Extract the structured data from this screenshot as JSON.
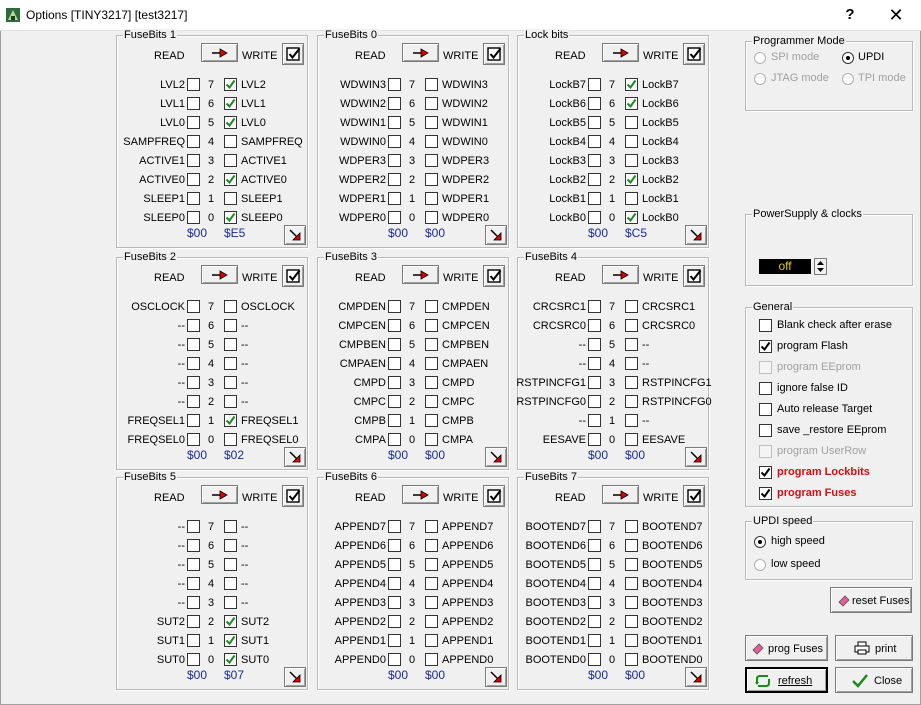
{
  "window": {
    "title": "Options [TINY3217] [test3217]",
    "help_label": "?",
    "close_label": "✕"
  },
  "labels": {
    "read": "READ",
    "write": "WRITE"
  },
  "fuse_groups": [
    {
      "title": "FuseBits 1",
      "hex_left": "$00",
      "hex_right": "$E5",
      "bits": [
        {
          "index": "7",
          "left": "LVL2",
          "right": "LVL2",
          "checked": true
        },
        {
          "index": "6",
          "left": "LVL1",
          "right": "LVL1",
          "checked": true
        },
        {
          "index": "5",
          "left": "LVL0",
          "right": "LVL0",
          "checked": true
        },
        {
          "index": "4",
          "left": "SAMPFREQ",
          "right": "SAMPFREQ",
          "checked": false
        },
        {
          "index": "3",
          "left": "ACTIVE1",
          "right": "ACTIVE1",
          "checked": false
        },
        {
          "index": "2",
          "left": "ACTIVE0",
          "right": "ACTIVE0",
          "checked": true
        },
        {
          "index": "1",
          "left": "SLEEP1",
          "right": "SLEEP1",
          "checked": false
        },
        {
          "index": "0",
          "left": "SLEEP0",
          "right": "SLEEP0",
          "checked": true
        }
      ]
    },
    {
      "title": "FuseBits 0",
      "hex_left": "$00",
      "hex_right": "$00",
      "bits": [
        {
          "index": "7",
          "left": "WDWIN3",
          "right": "WDWIN3",
          "checked": false
        },
        {
          "index": "6",
          "left": "WDWIN2",
          "right": "WDWIN2",
          "checked": false
        },
        {
          "index": "5",
          "left": "WDWIN1",
          "right": "WDWIN1",
          "checked": false
        },
        {
          "index": "4",
          "left": "WDWIN0",
          "right": "WDWIN0",
          "checked": false
        },
        {
          "index": "3",
          "left": "WDPER3",
          "right": "WDPER3",
          "checked": false
        },
        {
          "index": "2",
          "left": "WDPER2",
          "right": "WDPER2",
          "checked": false
        },
        {
          "index": "1",
          "left": "WDPER1",
          "right": "WDPER1",
          "checked": false
        },
        {
          "index": "0",
          "left": "WDPER0",
          "right": "WDPER0",
          "checked": false
        }
      ]
    },
    {
      "title": "Lock bits",
      "hex_left": "$00",
      "hex_right": "$C5",
      "bits": [
        {
          "index": "7",
          "left": "LockB7",
          "right": "LockB7",
          "checked": true
        },
        {
          "index": "6",
          "left": "LockB6",
          "right": "LockB6",
          "checked": true
        },
        {
          "index": "5",
          "left": "LockB5",
          "right": "LockB5",
          "checked": false
        },
        {
          "index": "4",
          "left": "LockB4",
          "right": "LockB4",
          "checked": false
        },
        {
          "index": "3",
          "left": "LockB3",
          "right": "LockB3",
          "checked": false
        },
        {
          "index": "2",
          "left": "LockB2",
          "right": "LockB2",
          "checked": true
        },
        {
          "index": "1",
          "left": "LockB1",
          "right": "LockB1",
          "checked": false
        },
        {
          "index": "0",
          "left": "LockB0",
          "right": "LockB0",
          "checked": true
        }
      ]
    },
    {
      "title": "FuseBits 2",
      "hex_left": "$00",
      "hex_right": "$02",
      "bits": [
        {
          "index": "7",
          "left": "OSCLOCK",
          "right": "OSCLOCK",
          "checked": false
        },
        {
          "index": "6",
          "left": "--",
          "right": "--",
          "checked": false
        },
        {
          "index": "5",
          "left": "--",
          "right": "--",
          "checked": false
        },
        {
          "index": "4",
          "left": "--",
          "right": "--",
          "checked": false
        },
        {
          "index": "3",
          "left": "--",
          "right": "--",
          "checked": false
        },
        {
          "index": "2",
          "left": "--",
          "right": "--",
          "checked": false
        },
        {
          "index": "1",
          "left": "FREQSEL1",
          "right": "FREQSEL1",
          "checked": true
        },
        {
          "index": "0",
          "left": "FREQSEL0",
          "right": "FREQSEL0",
          "checked": false
        }
      ]
    },
    {
      "title": "FuseBits 3",
      "hex_left": "$00",
      "hex_right": "$00",
      "bits": [
        {
          "index": "7",
          "left": "CMPDEN",
          "right": "CMPDEN",
          "checked": false
        },
        {
          "index": "6",
          "left": "CMPCEN",
          "right": "CMPCEN",
          "checked": false
        },
        {
          "index": "5",
          "left": "CMPBEN",
          "right": "CMPBEN",
          "checked": false
        },
        {
          "index": "4",
          "left": "CMPAEN",
          "right": "CMPAEN",
          "checked": false
        },
        {
          "index": "3",
          "left": "CMPD",
          "right": "CMPD",
          "checked": false
        },
        {
          "index": "2",
          "left": "CMPC",
          "right": "CMPC",
          "checked": false
        },
        {
          "index": "1",
          "left": "CMPB",
          "right": "CMPB",
          "checked": false
        },
        {
          "index": "0",
          "left": "CMPA",
          "right": "CMPA",
          "checked": false
        }
      ]
    },
    {
      "title": "FuseBits 4",
      "hex_left": "$00",
      "hex_right": "$00",
      "bits": [
        {
          "index": "7",
          "left": "CRCSRC1",
          "right": "CRCSRC1",
          "checked": false
        },
        {
          "index": "6",
          "left": "CRCSRC0",
          "right": "CRCSRC0",
          "checked": false
        },
        {
          "index": "5",
          "left": "--",
          "right": "--",
          "checked": false
        },
        {
          "index": "4",
          "left": "--",
          "right": "--",
          "checked": false
        },
        {
          "index": "3",
          "left": "RSTPINCFG1",
          "right": "RSTPINCFG1",
          "checked": false
        },
        {
          "index": "2",
          "left": "RSTPINCFG0",
          "right": "RSTPINCFG0",
          "checked": false
        },
        {
          "index": "1",
          "left": "--",
          "right": "--",
          "checked": false
        },
        {
          "index": "0",
          "left": "EESAVE",
          "right": "EESAVE",
          "checked": false
        }
      ]
    },
    {
      "title": "FuseBits 5",
      "hex_left": "$00",
      "hex_right": "$07",
      "bits": [
        {
          "index": "7",
          "left": "--",
          "right": "--",
          "checked": false
        },
        {
          "index": "6",
          "left": "--",
          "right": "--",
          "checked": false
        },
        {
          "index": "5",
          "left": "--",
          "right": "--",
          "checked": false
        },
        {
          "index": "4",
          "left": "--",
          "right": "--",
          "checked": false
        },
        {
          "index": "3",
          "left": "--",
          "right": "--",
          "checked": false
        },
        {
          "index": "2",
          "left": "SUT2",
          "right": "SUT2",
          "checked": true
        },
        {
          "index": "1",
          "left": "SUT1",
          "right": "SUT1",
          "checked": true
        },
        {
          "index": "0",
          "left": "SUT0",
          "right": "SUT0",
          "checked": true
        }
      ]
    },
    {
      "title": "FuseBits 6",
      "hex_left": "$00",
      "hex_right": "$00",
      "bits": [
        {
          "index": "7",
          "left": "APPEND7",
          "right": "APPEND7",
          "checked": false
        },
        {
          "index": "6",
          "left": "APPEND6",
          "right": "APPEND6",
          "checked": false
        },
        {
          "index": "5",
          "left": "APPEND5",
          "right": "APPEND5",
          "checked": false
        },
        {
          "index": "4",
          "left": "APPEND4",
          "right": "APPEND4",
          "checked": false
        },
        {
          "index": "3",
          "left": "APPEND3",
          "right": "APPEND3",
          "checked": false
        },
        {
          "index": "2",
          "left": "APPEND2",
          "right": "APPEND2",
          "checked": false
        },
        {
          "index": "1",
          "left": "APPEND1",
          "right": "APPEND1",
          "checked": false
        },
        {
          "index": "0",
          "left": "APPEND0",
          "right": "APPEND0",
          "checked": false
        }
      ]
    },
    {
      "title": "FuseBits 7",
      "hex_left": "$00",
      "hex_right": "$00",
      "bits": [
        {
          "index": "7",
          "left": "BOOTEND7",
          "right": "BOOTEND7",
          "checked": false
        },
        {
          "index": "6",
          "left": "BOOTEND6",
          "right": "BOOTEND6",
          "checked": false
        },
        {
          "index": "5",
          "left": "BOOTEND5",
          "right": "BOOTEND5",
          "checked": false
        },
        {
          "index": "4",
          "left": "BOOTEND4",
          "right": "BOOTEND4",
          "checked": false
        },
        {
          "index": "3",
          "left": "BOOTEND3",
          "right": "BOOTEND3",
          "checked": false
        },
        {
          "index": "2",
          "left": "BOOTEND2",
          "right": "BOOTEND2",
          "checked": false
        },
        {
          "index": "1",
          "left": "BOOTEND1",
          "right": "BOOTEND1",
          "checked": false
        },
        {
          "index": "0",
          "left": "BOOTEND0",
          "right": "BOOTEND0",
          "checked": false
        }
      ]
    }
  ],
  "programmer_mode": {
    "title": "Programmer Mode",
    "options": [
      {
        "label": "SPI mode",
        "selected": false,
        "enabled": false
      },
      {
        "label": "UPDI",
        "selected": true,
        "enabled": true
      },
      {
        "label": "JTAG mode",
        "selected": false,
        "enabled": false
      },
      {
        "label": "TPI mode",
        "selected": false,
        "enabled": false
      }
    ]
  },
  "power": {
    "title": "PowerSupply & clocks",
    "value": "off"
  },
  "general": {
    "title": "General",
    "options": [
      {
        "label": "Blank check after erase",
        "checked": false,
        "enabled": true,
        "style": "normal"
      },
      {
        "label": "program Flash",
        "checked": true,
        "enabled": true,
        "style": "normal"
      },
      {
        "label": "program EEprom",
        "checked": false,
        "enabled": false,
        "style": "normal"
      },
      {
        "label": "ignore false ID",
        "checked": false,
        "enabled": true,
        "style": "normal"
      },
      {
        "label": "Auto release Target",
        "checked": false,
        "enabled": true,
        "style": "normal"
      },
      {
        "label": "save _restore EEprom",
        "checked": false,
        "enabled": true,
        "style": "normal"
      },
      {
        "label": "program UserRow",
        "checked": false,
        "enabled": false,
        "style": "normal"
      },
      {
        "label": "program Lockbits",
        "checked": true,
        "enabled": true,
        "style": "red"
      },
      {
        "label": "program Fuses",
        "checked": true,
        "enabled": true,
        "style": "red"
      }
    ]
  },
  "updi_speed": {
    "title": "UPDI speed",
    "options": [
      {
        "label": "high speed",
        "selected": true
      },
      {
        "label": "low speed",
        "selected": false
      }
    ]
  },
  "buttons": {
    "reset_fuses": "reset Fuses",
    "prog_fuses": "prog Fuses",
    "print": "print",
    "refresh": "refresh",
    "close": "Close"
  },
  "colors": {
    "check": "#1a8a1a",
    "arrow": "#e00000",
    "accent_text": "#1a2a9c",
    "red_label": "#d01010"
  }
}
